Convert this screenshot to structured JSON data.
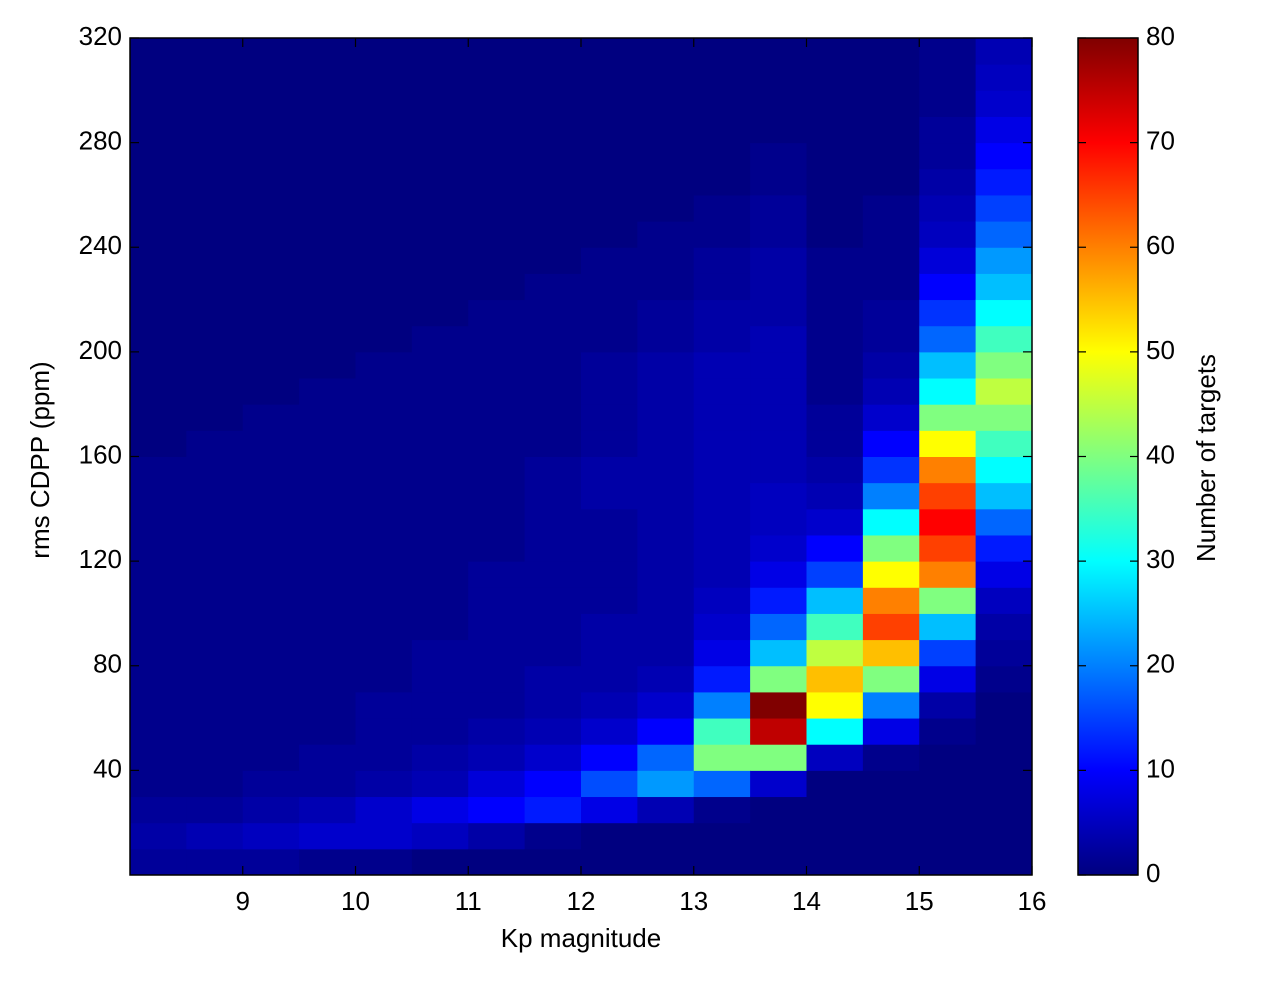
{
  "chart_data": {
    "type": "heatmap",
    "x_label": "Kp magnitude",
    "y_label": "rms CDPP (ppm)",
    "colorbar_label": "Number of targets",
    "colormap": "jet",
    "xlim": [
      8,
      16
    ],
    "xticks": [
      9,
      10,
      11,
      12,
      13,
      14,
      15,
      16
    ],
    "ylim": [
      0,
      320
    ],
    "yticks": [
      40,
      80,
      120,
      160,
      200,
      240,
      280,
      320
    ],
    "clim": [
      0,
      80
    ],
    "cticks": [
      0,
      10,
      20,
      30,
      40,
      50,
      60,
      70,
      80
    ],
    "x_bins": [
      8,
      8.5,
      9,
      9.5,
      10,
      10.5,
      11,
      11.5,
      12,
      12.5,
      13,
      13.5,
      14,
      14.5,
      15,
      15.5,
      16
    ],
    "y_bins": [
      0,
      10,
      20,
      30,
      40,
      50,
      60,
      70,
      80,
      90,
      100,
      110,
      120,
      130,
      140,
      150,
      160,
      170,
      180,
      190,
      200,
      210,
      220,
      230,
      240,
      250,
      260,
      270,
      280,
      290,
      300,
      310,
      320
    ],
    "values": [
      [
        2,
        3,
        2,
        1,
        1,
        1,
        1,
        1,
        1,
        1,
        1,
        1,
        1,
        1,
        1,
        1,
        0,
        0,
        0,
        0,
        0,
        0,
        0,
        0,
        0,
        0,
        0,
        0,
        0,
        0,
        0,
        0
      ],
      [
        2,
        4,
        2,
        1,
        1,
        1,
        1,
        1,
        1,
        1,
        1,
        1,
        1,
        1,
        1,
        1,
        1,
        0,
        0,
        0,
        0,
        0,
        0,
        0,
        0,
        0,
        0,
        0,
        0,
        0,
        0,
        0
      ],
      [
        2,
        5,
        3,
        2,
        1,
        1,
        1,
        1,
        1,
        1,
        1,
        1,
        1,
        1,
        1,
        1,
        1,
        1,
        0,
        0,
        0,
        0,
        0,
        0,
        0,
        0,
        0,
        0,
        0,
        0,
        0,
        0
      ],
      [
        1,
        6,
        4,
        2,
        2,
        1,
        1,
        1,
        1,
        1,
        1,
        1,
        1,
        1,
        1,
        1,
        1,
        1,
        1,
        0,
        0,
        0,
        0,
        0,
        0,
        0,
        0,
        0,
        0,
        0,
        0,
        0
      ],
      [
        1,
        6,
        6,
        3,
        2,
        2,
        2,
        1,
        1,
        1,
        1,
        1,
        1,
        1,
        1,
        1,
        1,
        1,
        1,
        1,
        0,
        0,
        0,
        0,
        0,
        0,
        0,
        0,
        0,
        0,
        0,
        0
      ],
      [
        0,
        5,
        8,
        4,
        3,
        2,
        2,
        2,
        2,
        1,
        1,
        1,
        1,
        1,
        1,
        1,
        1,
        1,
        1,
        1,
        1,
        0,
        0,
        0,
        0,
        0,
        0,
        0,
        0,
        0,
        0,
        0
      ],
      [
        0,
        3,
        10,
        7,
        4,
        3,
        2,
        2,
        2,
        2,
        2,
        2,
        1,
        1,
        1,
        1,
        1,
        1,
        1,
        1,
        1,
        1,
        0,
        0,
        0,
        0,
        0,
        0,
        0,
        0,
        0,
        0
      ],
      [
        0,
        1,
        12,
        10,
        6,
        4,
        3,
        3,
        2,
        2,
        2,
        2,
        2,
        2,
        2,
        2,
        1,
        1,
        1,
        1,
        1,
        1,
        1,
        0,
        0,
        0,
        0,
        0,
        0,
        0,
        0,
        0
      ],
      [
        0,
        0,
        8,
        16,
        10,
        6,
        4,
        3,
        3,
        3,
        2,
        2,
        2,
        2,
        3,
        3,
        2,
        2,
        2,
        2,
        1,
        1,
        1,
        1,
        0,
        0,
        0,
        0,
        0,
        0,
        0,
        0
      ],
      [
        0,
        0,
        4,
        22,
        18,
        10,
        6,
        4,
        3,
        3,
        3,
        3,
        3,
        3,
        3,
        3,
        3,
        3,
        3,
        3,
        2,
        2,
        1,
        1,
        1,
        0,
        0,
        0,
        0,
        0,
        0,
        0
      ],
      [
        0,
        0,
        1,
        18,
        40,
        35,
        20,
        12,
        8,
        6,
        5,
        4,
        4,
        4,
        4,
        4,
        4,
        4,
        4,
        4,
        3,
        3,
        2,
        2,
        1,
        1,
        0,
        0,
        0,
        0,
        0,
        0
      ],
      [
        0,
        0,
        0,
        6,
        40,
        75,
        80,
        40,
        25,
        18,
        12,
        8,
        6,
        5,
        5,
        4,
        4,
        4,
        4,
        4,
        4,
        3,
        3,
        3,
        2,
        2,
        1,
        1,
        0,
        0,
        0,
        0
      ],
      [
        0,
        0,
        0,
        0,
        5,
        30,
        50,
        55,
        45,
        35,
        25,
        15,
        10,
        6,
        4,
        3,
        2,
        2,
        1,
        1,
        1,
        1,
        1,
        1,
        0,
        0,
        0,
        0,
        0,
        0,
        0,
        0
      ],
      [
        0,
        0,
        0,
        0,
        1,
        8,
        20,
        40,
        55,
        65,
        60,
        50,
        40,
        30,
        20,
        14,
        10,
        6,
        4,
        3,
        2,
        2,
        1,
        1,
        1,
        1,
        0,
        0,
        0,
        0,
        0,
        0
      ],
      [
        0,
        0,
        0,
        0,
        0,
        1,
        3,
        8,
        15,
        25,
        40,
        60,
        65,
        70,
        65,
        60,
        50,
        40,
        30,
        25,
        18,
        14,
        10,
        7,
        5,
        4,
        3,
        2,
        2,
        1,
        1,
        1
      ],
      [
        0,
        0,
        0,
        0,
        0,
        0,
        0,
        1,
        2,
        3,
        5,
        8,
        12,
        18,
        25,
        30,
        35,
        40,
        45,
        40,
        35,
        30,
        25,
        22,
        18,
        15,
        12,
        10,
        8,
        6,
        5,
        4
      ]
    ]
  }
}
